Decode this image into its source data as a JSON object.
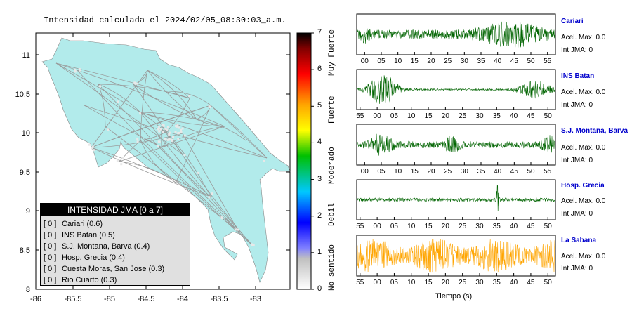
{
  "title": "Intensidad calculada el 2024/02/05_08:30:03_a.m.",
  "map": {
    "x_ticks": [
      "-86",
      "-85.5",
      "-85",
      "-84.5",
      "-84",
      "-83.5",
      "-83"
    ],
    "y_ticks": [
      "11",
      "10.5",
      "10",
      "9.5",
      "9",
      "8.5",
      "8"
    ],
    "land_color": "#b2ebeb",
    "road_color": "#999999"
  },
  "legend": {
    "title": "INTENSIDAD JMA [0 a 7]",
    "items": [
      {
        "level": "[ 0 ]",
        "label": "Cariari (0.6)"
      },
      {
        "level": "[ 0 ]",
        "label": "INS Batan (0.5)"
      },
      {
        "level": "[ 0 ]",
        "label": "S.J. Montana, Barva (0.4)"
      },
      {
        "level": "[ 0 ]",
        "label": "Hosp. Grecia (0.4)"
      },
      {
        "level": "[ 0 ]",
        "label": "Cuesta Moras, San Jose (0.3)"
      },
      {
        "level": "[ 0 ]",
        "label": "Rio Cuarto (0.3)"
      }
    ]
  },
  "colorbar": {
    "ticks": [
      "7",
      "6",
      "5",
      "4",
      "3",
      "2",
      "1",
      "0"
    ],
    "labels": [
      "Muy Fuerte",
      "Fuerte",
      "Moderado",
      "Debil",
      "No sentido"
    ],
    "range": [
      0,
      7
    ]
  },
  "stations": [
    {
      "name": "Cariari",
      "acel": "Acel. Max. 0.0",
      "jma": "Int JMA: 0",
      "ticks": [
        "00",
        "05",
        "10",
        "15",
        "20",
        "25",
        "30",
        "35",
        "40",
        "45",
        "50",
        "55"
      ],
      "color": "#006400"
    },
    {
      "name": "INS Batan",
      "acel": "Acel. Max. 0.0",
      "jma": "Int JMA: 0",
      "ticks": [
        "55",
        "00",
        "05",
        "10",
        "15",
        "20",
        "25",
        "30",
        "35",
        "40",
        "45",
        "50"
      ],
      "color": "#006400"
    },
    {
      "name": "S.J. Montana, Barva",
      "acel": "Acel. Max. 0.0",
      "jma": "Int JMA: 0",
      "ticks": [
        "00",
        "05",
        "10",
        "15",
        "20",
        "25",
        "30",
        "35",
        "40",
        "45",
        "50",
        "55"
      ],
      "color": "#006400"
    },
    {
      "name": "Hosp. Grecia",
      "acel": "Acel. Max. 0.0",
      "jma": "Int JMA: 0",
      "ticks": [
        "55",
        "00",
        "05",
        "10",
        "15",
        "20",
        "25",
        "30",
        "35",
        "40",
        "45",
        "50"
      ],
      "color": "#006400"
    },
    {
      "name": "La Sabana",
      "acel": "Acel. Max. 0.0",
      "jma": "Int JMA: 0",
      "ticks": [
        "55",
        "00",
        "05",
        "10",
        "15",
        "20",
        "25",
        "30",
        "35",
        "40",
        "45",
        "50"
      ],
      "color": "#ffa500"
    }
  ],
  "xaxis_label": "Tiempo (s)",
  "chart_data": [
    {
      "type": "heatmap",
      "title": "Intensidad calculada el 2024/02/05_08:30:03_a.m.",
      "xlim": [
        -86,
        -82.6
      ],
      "ylim": [
        8,
        11.3
      ],
      "colorbar_range": [
        0,
        7
      ],
      "stations": [
        {
          "name": "Cariari",
          "intensity": 0.6
        },
        {
          "name": "INS Batan",
          "intensity": 0.5
        },
        {
          "name": "S.J. Montana, Barva",
          "intensity": 0.4
        },
        {
          "name": "Hosp. Grecia",
          "intensity": 0.4
        },
        {
          "name": "Cuesta Moras, San Jose",
          "intensity": 0.3
        },
        {
          "name": "Rio Cuarto",
          "intensity": 0.3
        }
      ]
    },
    {
      "type": "line",
      "xlabel": "Tiempo (s)",
      "series": [
        {
          "name": "Cariari",
          "acel_max": 0.0,
          "int_jma": 0
        },
        {
          "name": "INS Batan",
          "acel_max": 0.0,
          "int_jma": 0
        },
        {
          "name": "S.J. Montana, Barva",
          "acel_max": 0.0,
          "int_jma": 0
        },
        {
          "name": "Hosp. Grecia",
          "acel_max": 0.0,
          "int_jma": 0
        },
        {
          "name": "La Sabana",
          "acel_max": 0.0,
          "int_jma": 0
        }
      ]
    }
  ]
}
